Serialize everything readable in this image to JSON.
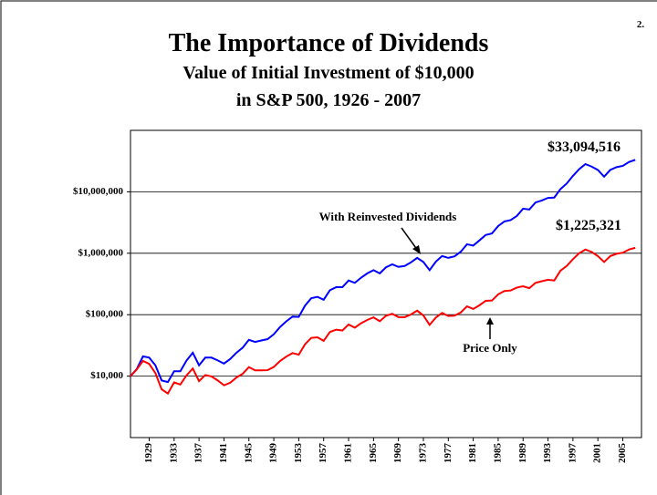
{
  "page_number": "2.",
  "chart_data": {
    "type": "line",
    "title": "The Importance of Dividends",
    "subtitle": [
      "Value of Initial Investment of $10,000",
      "in S&P 500, 1926 - 2007"
    ],
    "annotations": [
      "$33,094,516",
      "$1,225,321",
      "With Reinvested Dividends",
      "Price Only"
    ],
    "log_scale": true,
    "grid": true,
    "x": [
      1926,
      1927,
      1928,
      1929,
      1930,
      1931,
      1932,
      1933,
      1934,
      1935,
      1936,
      1937,
      1938,
      1939,
      1940,
      1941,
      1942,
      1943,
      1944,
      1945,
      1946,
      1947,
      1948,
      1949,
      1950,
      1951,
      1952,
      1953,
      1954,
      1955,
      1956,
      1957,
      1958,
      1959,
      1960,
      1961,
      1962,
      1963,
      1964,
      1965,
      1966,
      1967,
      1968,
      1969,
      1970,
      1971,
      1972,
      1973,
      1974,
      1975,
      1976,
      1977,
      1978,
      1979,
      1980,
      1981,
      1982,
      1983,
      1984,
      1985,
      1986,
      1987,
      1988,
      1989,
      1990,
      1991,
      1992,
      1993,
      1994,
      1995,
      1996,
      1997,
      1998,
      1999,
      2000,
      2001,
      2002,
      2003,
      2004,
      2005,
      2006,
      2007
    ],
    "xlim": [
      1926,
      2008
    ],
    "xticks": [
      1929,
      1933,
      1937,
      1941,
      1945,
      1949,
      1953,
      1957,
      1961,
      1965,
      1969,
      1973,
      1977,
      1981,
      1985,
      1989,
      1993,
      1997,
      2001,
      2005
    ],
    "ylim": [
      1000,
      100000000
    ],
    "yticks": [
      {
        "value": 10000,
        "label": "$10,000"
      },
      {
        "value": 100000,
        "label": "$100,000"
      },
      {
        "value": 1000000,
        "label": "$1,000,000"
      },
      {
        "value": 10000000,
        "label": "$10,000,000"
      }
    ],
    "series": [
      {
        "name": "With Reinvested Dividends",
        "color": "#0000ff",
        "values": [
          10000,
          13000,
          21000,
          20000,
          15000,
          8500,
          8000,
          12000,
          12000,
          18000,
          24000,
          15000,
          20000,
          20000,
          18000,
          16000,
          19000,
          24000,
          29000,
          39000,
          36000,
          38000,
          40000,
          48000,
          63000,
          78000,
          93000,
          92000,
          140000,
          185000,
          195000,
          175000,
          250000,
          280000,
          280000,
          360000,
          330000,
          400000,
          470000,
          530000,
          470000,
          590000,
          660000,
          600000,
          620000,
          710000,
          840000,
          720000,
          530000,
          730000,
          900000,
          840000,
          890000,
          1060000,
          1400000,
          1330000,
          1620000,
          1980000,
          2100000,
          2770000,
          3290000,
          3460000,
          4040000,
          5310000,
          5150000,
          6710000,
          7220000,
          7950000,
          8050000,
          11080000,
          13620000,
          18170000,
          23370000,
          28280000,
          25710000,
          22650000,
          17650000,
          22710000,
          25180000,
          26420000,
          30590000,
          33094516
        ]
      },
      {
        "name": "Price Only",
        "color": "#ff0000",
        "values": [
          10000,
          12800,
          17700,
          15800,
          11200,
          6100,
          5200,
          7900,
          7300,
          10300,
          13300,
          8300,
          10400,
          9900,
          8500,
          7100,
          7800,
          9500,
          10900,
          14000,
          12400,
          12400,
          12500,
          14100,
          17600,
          20800,
          23700,
          22300,
          32900,
          41900,
          42900,
          37500,
          52300,
          57000,
          55300,
          69200,
          61500,
          72600,
          82100,
          90500,
          78300,
          96000,
          103300,
          91100,
          91000,
          100600,
          116300,
          96900,
          68300,
          89900,
          106700,
          95300,
          96300,
          108700,
          136600,
          123900,
          142400,
          168200,
          169900,
          214300,
          242400,
          247700,
          276300,
          290000,
          270000,
          330000,
          350000,
          370000,
          360000,
          520000,
          620000,
          800000,
          1000000,
          1150000,
          1050000,
          900000,
          720000,
          900000,
          980000,
          1020000,
          1150000,
          1225321
        ]
      }
    ]
  }
}
